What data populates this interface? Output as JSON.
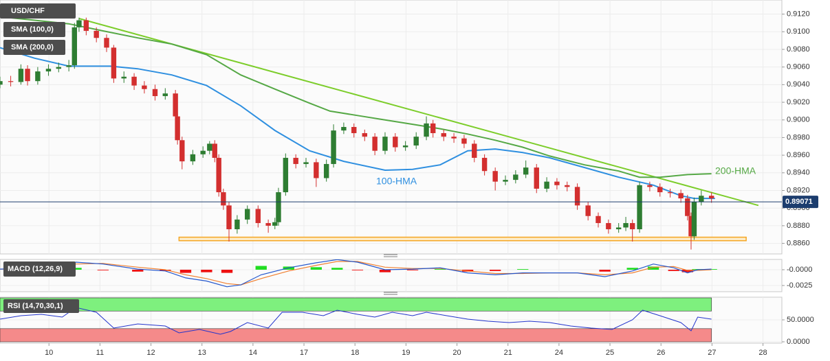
{
  "chart_data": [
    {
      "type": "candlestick",
      "legend": [
        "USD/CHF",
        "SMA (100,0)",
        "SMA (200,0)"
      ],
      "xlim": [
        -0.96,
        14.37
      ],
      "ylim": [
        0.8848,
        0.9136
      ],
      "yticks": [
        {
          "value": 0.912,
          "label": "0.9120"
        },
        {
          "value": 0.91,
          "label": "0.9100"
        },
        {
          "value": 0.908,
          "label": "0.9080"
        },
        {
          "value": 0.906,
          "label": "0.9060"
        },
        {
          "value": 0.904,
          "label": "0.9040"
        },
        {
          "value": 0.902,
          "label": "0.9020"
        },
        {
          "value": 0.9,
          "label": "0.9000"
        },
        {
          "value": 0.898,
          "label": "0.8980"
        },
        {
          "value": 0.896,
          "label": "0.8960"
        },
        {
          "value": 0.894,
          "label": "0.8940"
        },
        {
          "value": 0.892,
          "label": "0.8920"
        },
        {
          "value": 0.89,
          "label": "0.8900"
        },
        {
          "value": 0.888,
          "label": "0.8880"
        },
        {
          "value": 0.886,
          "label": "0.8860"
        }
      ],
      "grid": true,
      "up_color": "#2e7d32",
      "down_color": "#d32f2f",
      "x": [
        -0.96,
        -0.75,
        -0.55,
        -0.42,
        -0.22,
        -0.01,
        0.19,
        0.39,
        0.5,
        0.59,
        0.73,
        0.93,
        1.13,
        1.27,
        1.47,
        1.67,
        1.87,
        2.08,
        2.28,
        2.48,
        2.52,
        2.61,
        2.82,
        3.02,
        3.15,
        3.25,
        3.33,
        3.42,
        3.53,
        3.69,
        3.89,
        4.1,
        4.3,
        4.43,
        4.5,
        4.64,
        4.84,
        5.04,
        5.24,
        5.44,
        5.58,
        5.78,
        5.98,
        6.19,
        6.39,
        6.59,
        6.79,
        6.99,
        7.2,
        7.4,
        7.53,
        7.74,
        7.94,
        8.14,
        8.34,
        8.54,
        8.75,
        8.95,
        9.15,
        9.35,
        9.56,
        9.76,
        9.96,
        10.16,
        10.36,
        10.57,
        10.77,
        10.97,
        11.17,
        11.31,
        11.44,
        11.58,
        11.78,
        11.98,
        12.18,
        12.39,
        12.52,
        12.59,
        12.65,
        12.79,
        12.99
      ],
      "ohlc": [
        [
          0.904,
          0.9049,
          0.9036,
          0.9044
        ],
        [
          0.9044,
          0.905,
          0.9038,
          0.9043
        ],
        [
          0.9043,
          0.9063,
          0.904,
          0.9058
        ],
        [
          0.9058,
          0.9062,
          0.9039,
          0.9044
        ],
        [
          0.9044,
          0.906,
          0.904,
          0.9055
        ],
        [
          0.9055,
          0.9063,
          0.905,
          0.9058
        ],
        [
          0.9058,
          0.9065,
          0.9054,
          0.906
        ],
        [
          0.906,
          0.9068,
          0.9055,
          0.9062
        ],
        [
          0.9062,
          0.911,
          0.9058,
          0.9105
        ],
        [
          0.9105,
          0.9116,
          0.91,
          0.9113
        ],
        [
          0.9113,
          0.9116,
          0.9096,
          0.9101
        ],
        [
          0.9101,
          0.9105,
          0.9088,
          0.9093
        ],
        [
          0.9093,
          0.9097,
          0.9077,
          0.9082
        ],
        [
          0.9082,
          0.9085,
          0.9042,
          0.9047
        ],
        [
          0.9047,
          0.9055,
          0.9042,
          0.9049
        ],
        [
          0.9049,
          0.9053,
          0.9034,
          0.9039
        ],
        [
          0.9039,
          0.9044,
          0.903,
          0.9035
        ],
        [
          0.9035,
          0.904,
          0.9022,
          0.9027
        ],
        [
          0.9027,
          0.9036,
          0.9023,
          0.903
        ],
        [
          0.903,
          0.9034,
          0.8999,
          0.9004
        ],
        [
          0.9004,
          0.9008,
          0.8972,
          0.8977
        ],
        [
          0.8977,
          0.8981,
          0.8944,
          0.8953
        ],
        [
          0.8953,
          0.8966,
          0.8949,
          0.8961
        ],
        [
          0.8961,
          0.897,
          0.8957,
          0.8965
        ],
        [
          0.8965,
          0.8976,
          0.8961,
          0.8973
        ],
        [
          0.8973,
          0.8977,
          0.8952,
          0.8957
        ],
        [
          0.8957,
          0.8961,
          0.8913,
          0.8918
        ],
        [
          0.8918,
          0.8922,
          0.8898,
          0.8903
        ],
        [
          0.8903,
          0.8907,
          0.8862,
          0.8876
        ],
        [
          0.8876,
          0.8892,
          0.8871,
          0.8887
        ],
        [
          0.8887,
          0.8903,
          0.8882,
          0.8899
        ],
        [
          0.8899,
          0.8903,
          0.8878,
          0.8883
        ],
        [
          0.8883,
          0.8887,
          0.8872,
          0.888
        ],
        [
          0.888,
          0.8889,
          0.8876,
          0.8884
        ],
        [
          0.8884,
          0.8923,
          0.888,
          0.8918
        ],
        [
          0.8918,
          0.8962,
          0.8914,
          0.8957
        ],
        [
          0.8957,
          0.8961,
          0.8945,
          0.895
        ],
        [
          0.895,
          0.8957,
          0.8946,
          0.8952
        ],
        [
          0.8952,
          0.8956,
          0.8924,
          0.8934
        ],
        [
          0.8934,
          0.8955,
          0.893,
          0.895
        ],
        [
          0.895,
          0.8995,
          0.8946,
          0.8988
        ],
        [
          0.8988,
          0.8997,
          0.8984,
          0.8992
        ],
        [
          0.8992,
          0.8996,
          0.898,
          0.8985
        ],
        [
          0.8985,
          0.8989,
          0.8976,
          0.8981
        ],
        [
          0.8981,
          0.8985,
          0.896,
          0.8965
        ],
        [
          0.8965,
          0.8986,
          0.8961,
          0.8981
        ],
        [
          0.8981,
          0.8985,
          0.8964,
          0.8969
        ],
        [
          0.8969,
          0.8976,
          0.8965,
          0.8971
        ],
        [
          0.8971,
          0.8986,
          0.8967,
          0.8981
        ],
        [
          0.8981,
          0.9004,
          0.8977,
          0.8996
        ],
        [
          0.8996,
          0.9,
          0.898,
          0.8985
        ],
        [
          0.8985,
          0.8989,
          0.8976,
          0.8981
        ],
        [
          0.8981,
          0.8985,
          0.8974,
          0.8979
        ],
        [
          0.8979,
          0.8983,
          0.8968,
          0.8973
        ],
        [
          0.8973,
          0.8977,
          0.8952,
          0.8957
        ],
        [
          0.8957,
          0.8961,
          0.8937,
          0.8942
        ],
        [
          0.8942,
          0.8946,
          0.892,
          0.893
        ],
        [
          0.893,
          0.8937,
          0.8926,
          0.8932
        ],
        [
          0.8932,
          0.8943,
          0.8928,
          0.8938
        ],
        [
          0.8938,
          0.8954,
          0.8934,
          0.8946
        ],
        [
          0.8946,
          0.895,
          0.8917,
          0.8922
        ],
        [
          0.8922,
          0.8935,
          0.8918,
          0.893
        ],
        [
          0.893,
          0.8934,
          0.8921,
          0.8926
        ],
        [
          0.8926,
          0.893,
          0.8919,
          0.8924
        ],
        [
          0.8924,
          0.8928,
          0.8898,
          0.8903
        ],
        [
          0.8903,
          0.8907,
          0.8886,
          0.8891
        ],
        [
          0.8891,
          0.8895,
          0.8878,
          0.8883
        ],
        [
          0.8883,
          0.8887,
          0.8871,
          0.8876
        ],
        [
          0.8876,
          0.8883,
          0.8872,
          0.8878
        ],
        [
          0.8878,
          0.889,
          0.8874,
          0.8883
        ],
        [
          0.8883,
          0.8887,
          0.8862,
          0.8876
        ],
        [
          0.8876,
          0.893,
          0.8872,
          0.8926
        ],
        [
          0.8926,
          0.893,
          0.8919,
          0.8924
        ],
        [
          0.8924,
          0.8928,
          0.8913,
          0.8918
        ],
        [
          0.8918,
          0.8922,
          0.8912,
          0.8917
        ],
        [
          0.8917,
          0.8921,
          0.8906,
          0.8911
        ],
        [
          0.8911,
          0.8915,
          0.8886,
          0.8891
        ],
        [
          0.8891,
          0.8895,
          0.8853,
          0.8868
        ],
        [
          0.8868,
          0.8912,
          0.8864,
          0.8907
        ],
        [
          0.8907,
          0.892,
          0.8903,
          0.8914
        ],
        [
          0.8914,
          0.8918,
          0.8906,
          0.8911
        ]
      ],
      "series": [
        {
          "name": "100-HMA",
          "color": "#2e8fe0",
          "x": [
            -0.96,
            -0.28,
            0.39,
            1.2,
            1.74,
            2.41,
            3.09,
            3.76,
            4.43,
            5.11,
            5.78,
            6.59,
            7.13,
            7.67,
            8.21,
            8.75,
            9.29,
            9.82,
            10.5,
            11.17,
            11.85,
            12.39,
            12.65,
            13.06
          ],
          "values": [
            0.9082,
            0.907,
            0.9061,
            0.9061,
            0.9058,
            0.9051,
            0.9039,
            0.9016,
            0.8988,
            0.8965,
            0.8953,
            0.8943,
            0.8944,
            0.8949,
            0.8965,
            0.8967,
            0.8963,
            0.8957,
            0.8946,
            0.8935,
            0.8926,
            0.8914,
            0.8911,
            0.8911
          ]
        },
        {
          "name": "200-HMA",
          "color": "#55a845",
          "x": [
            -0.96,
            -0.28,
            0.39,
            1.06,
            1.74,
            2.41,
            3.09,
            3.76,
            4.43,
            5.11,
            5.51,
            6.05,
            6.59,
            7.13,
            7.67,
            8.21,
            8.75,
            9.29,
            9.82,
            10.5,
            11.17,
            11.58,
            11.98,
            12.52,
            12.99
          ],
          "values": [
            0.9117,
            0.9113,
            0.9109,
            0.9101,
            0.9093,
            0.9086,
            0.9074,
            0.9051,
            0.9035,
            0.9019,
            0.901,
            0.9005,
            0.9,
            0.8995,
            0.899,
            0.8984,
            0.8977,
            0.8969,
            0.8959,
            0.8949,
            0.8942,
            0.8935,
            0.8935,
            0.8938,
            0.8939
          ]
        }
      ],
      "trendline": {
        "color": "#7ccd2a",
        "x": [
          0.59,
          13.91
        ],
        "y": [
          0.9115,
          0.8903
        ]
      },
      "support_zone": {
        "color": "#f5a623",
        "x": [
          2.55,
          13.67
        ],
        "y": [
          0.8863,
          0.8867
        ]
      },
      "last_price": 0.89071,
      "last_price_color": "#1c3d6e"
    },
    {
      "type": "macd",
      "title": "MACD (12,26,9)",
      "xlim": [
        -0.96,
        14.37
      ],
      "ylim": [
        -0.00348,
        0.00163
      ],
      "yticks": [
        {
          "value": 0,
          "label": "-0.0000"
        },
        {
          "value": -0.0025,
          "label": "-0.0025"
        }
      ],
      "line_color": "#2255cc",
      "signal_color": "#f08030",
      "up_color": "#22dd22",
      "down_color": "#ee1111",
      "x": [
        -0.96,
        -0.15,
        0.53,
        1.06,
        1.74,
        2.28,
        2.68,
        3.09,
        3.49,
        3.76,
        4.16,
        4.7,
        5.24,
        5.65,
        6.05,
        6.59,
        7.13,
        7.67,
        8.21,
        8.75,
        9.29,
        9.82,
        10.36,
        10.9,
        11.44,
        11.85,
        12.25,
        12.52,
        12.72,
        12.99
      ],
      "line": [
        0.0001,
        0.0003,
        0.0012,
        0.0009,
        0.0001,
        -0.0002,
        -0.0013,
        -0.0018,
        -0.0027,
        -0.0024,
        -0.0008,
        0.0003,
        0.0011,
        0.0016,
        0.0012,
        0,
        0.0001,
        0.0003,
        -0.0005,
        -0.0008,
        -0.0005,
        -0.0005,
        -0.0005,
        -0.0011,
        -0.0002,
        0.0009,
        0.0003,
        -0.0005,
        0,
        0.0001
      ],
      "signal": [
        0.0001,
        0.0002,
        0.0009,
        0.001,
        0.0004,
        0,
        -0.0008,
        -0.0014,
        -0.0022,
        -0.0024,
        -0.0014,
        -0.0002,
        0.0007,
        0.0013,
        0.0013,
        0.0004,
        0.0002,
        0.0002,
        -0.0002,
        -0.0006,
        -0.0006,
        -0.0005,
        -0.0005,
        -0.0008,
        -0.0005,
        0.0004,
        0.0005,
        -0.0001,
        -0.0001,
        0
      ],
      "histogram": [
        0,
        0.0001,
        0.0003,
        -0.0001,
        -0.0003,
        -0.0002,
        -0.0005,
        -0.0004,
        -0.0005,
        0,
        0.0006,
        0.0005,
        0.0004,
        0.0003,
        -0.0001,
        -0.0004,
        -0.0001,
        0.0001,
        -0.0003,
        -0.0002,
        0.0001,
        0,
        0,
        -0.0003,
        0.0003,
        0.0005,
        -0.0002,
        -0.0004,
        0.0001,
        0.0001
      ]
    },
    {
      "type": "rsi",
      "title": "RSI (14,70,30,1)",
      "xlim": [
        -0.96,
        14.37
      ],
      "ylim": [
        -3.1,
        101.6
      ],
      "yticks": [
        {
          "value": 50,
          "label": "50.0000"
        },
        {
          "value": 0,
          "label": "0.0000"
        }
      ],
      "xticks": [
        {
          "value": 0,
          "label": "10"
        },
        {
          "value": 1,
          "label": "11"
        },
        {
          "value": 2,
          "label": "12"
        },
        {
          "value": 3,
          "label": "13"
        },
        {
          "value": 4,
          "label": "14"
        },
        {
          "value": 5,
          "label": "17"
        },
        {
          "value": 6,
          "label": "18"
        },
        {
          "value": 7,
          "label": "19"
        },
        {
          "value": 8,
          "label": "20"
        },
        {
          "value": 9,
          "label": "21"
        },
        {
          "value": 10,
          "label": "24"
        },
        {
          "value": 11,
          "label": "25"
        },
        {
          "value": 12,
          "label": "26"
        },
        {
          "value": 13,
          "label": "27"
        },
        {
          "value": 14,
          "label": "28"
        }
      ],
      "color": "#2233cc",
      "bands": [
        {
          "range": [
            70,
            100
          ],
          "color": "#7ef07e"
        },
        {
          "range": [
            0,
            30
          ],
          "color": "#f58a8a"
        }
      ],
      "x": [
        -0.96,
        -0.55,
        -0.15,
        0.26,
        0.53,
        0.93,
        1.27,
        1.74,
        2.28,
        2.55,
        2.95,
        3.36,
        3.56,
        3.89,
        4.3,
        4.57,
        4.97,
        5.38,
        5.65,
        6.05,
        6.39,
        6.73,
        7.13,
        7.4,
        7.8,
        8.21,
        8.61,
        9.02,
        9.42,
        9.82,
        10.23,
        10.63,
        11.04,
        11.44,
        11.64,
        11.98,
        12.39,
        12.59,
        12.72,
        12.99
      ],
      "values": [
        51.6,
        59.4,
        62.5,
        56.3,
        78.1,
        67.2,
        31.3,
        40.6,
        35.9,
        20.3,
        28.1,
        17.2,
        23.4,
        43.8,
        31.3,
        67.2,
        67.2,
        59.4,
        71.9,
        62.5,
        56.3,
        67.2,
        59.4,
        67.2,
        59.4,
        51.6,
        46.9,
        43.8,
        46.9,
        43.8,
        35.9,
        31.3,
        28.1,
        50,
        71.9,
        59.4,
        43.8,
        25,
        56.3,
        51.6
      ]
    }
  ]
}
